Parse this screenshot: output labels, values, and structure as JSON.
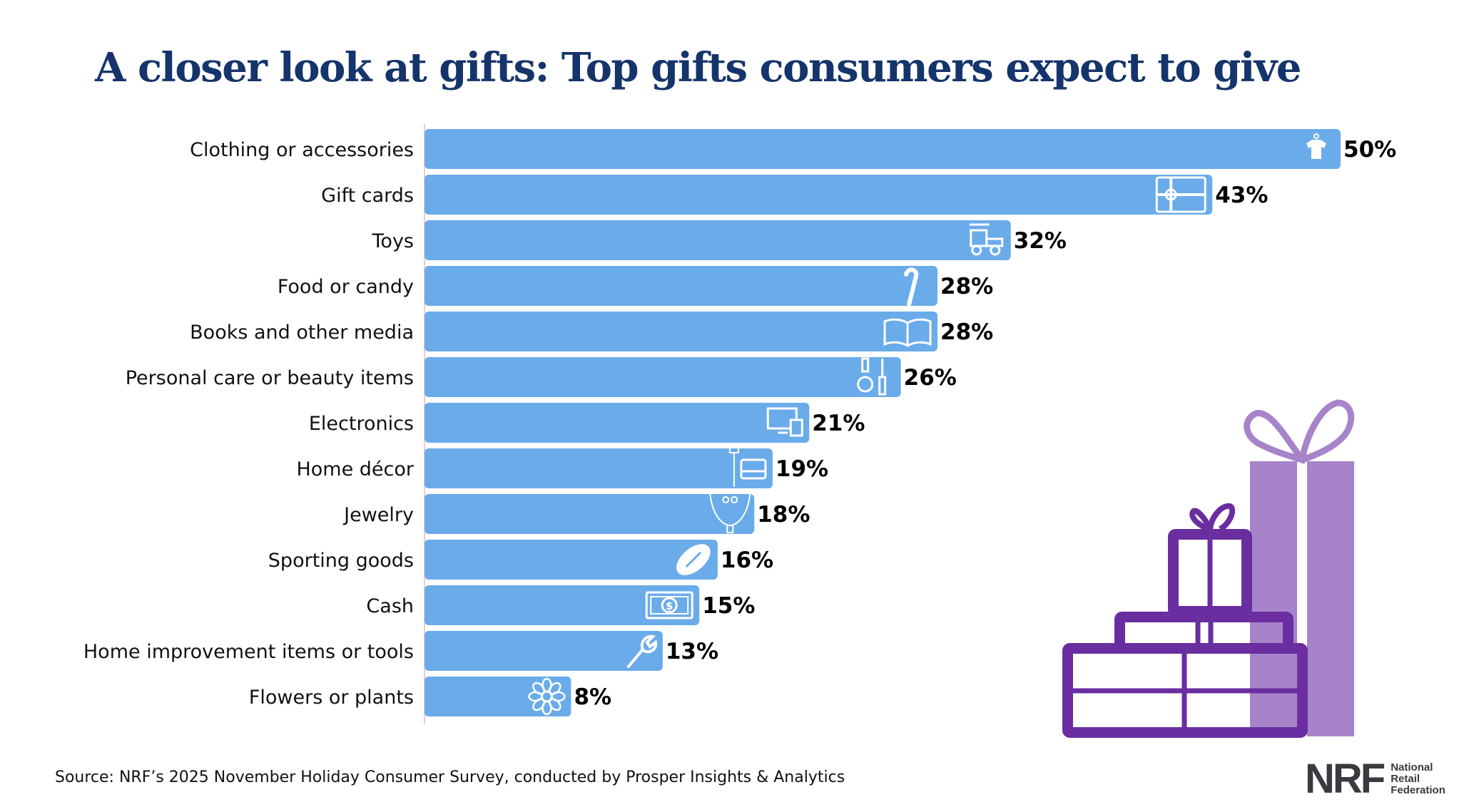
{
  "title": "A closer look at gifts: Top gifts consumers expect to give",
  "source": "Source: NRF’s 2025 November Holiday Consumer Survey, conducted by Prosper Insights & Analytics",
  "logo": {
    "mark": "NRF",
    "words": [
      "National",
      "Retail",
      "Federation"
    ]
  },
  "colors": {
    "bar": "#6aabea",
    "title": "#15346b",
    "gift_dark": "#6a2ea0",
    "gift_light": "#a784c9"
  },
  "chart_data": {
    "type": "bar",
    "orientation": "horizontal",
    "title": "A closer look at gifts: Top gifts consumers expect to give",
    "xlabel": "",
    "ylabel": "",
    "xlim": [
      0,
      50
    ],
    "grid": false,
    "unit": "%",
    "categories": [
      "Clothing or accessories",
      "Gift cards",
      "Toys",
      "Food or candy",
      "Books and other media",
      "Personal care or beauty items",
      "Electronics",
      "Home décor",
      "Jewelry",
      "Sporting goods",
      "Cash",
      "Home improvement items or tools",
      "Flowers or plants"
    ],
    "values": [
      50,
      43,
      32,
      28,
      28,
      26,
      21,
      19,
      18,
      16,
      15,
      13,
      8
    ],
    "labels": [
      "50%",
      "43%",
      "32%",
      "28%",
      "28%",
      "26%",
      "21%",
      "19%",
      "18%",
      "16%",
      "15%",
      "13%",
      "8%"
    ],
    "icons": [
      "tshirt-icon",
      "gift-card-icon",
      "toy-train-icon",
      "candy-cane-icon",
      "book-icon",
      "beauty-icon",
      "computer-icon",
      "lamp-chair-icon",
      "necklace-icon",
      "football-icon",
      "money-icon",
      "wrench-icon",
      "flower-icon"
    ]
  }
}
